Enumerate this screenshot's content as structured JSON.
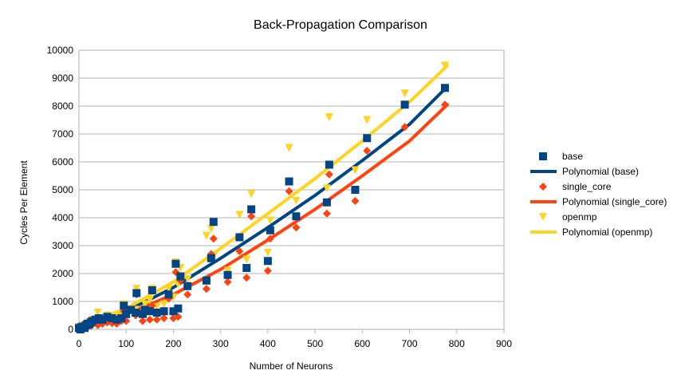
{
  "chart_data": {
    "type": "scatter",
    "title": "Back-Propagation Comparison",
    "xlabel": "Number of Neurons",
    "ylabel": "Cycles Per Element",
    "xlim": [
      0,
      900
    ],
    "ylim": [
      0,
      10000
    ],
    "xticks": [
      "0",
      "100",
      "200",
      "300",
      "400",
      "500",
      "600",
      "700",
      "800",
      "900"
    ],
    "yticks": [
      "0",
      "1000",
      "2000",
      "3000",
      "4000",
      "5000",
      "6000",
      "7000",
      "8000",
      "9000",
      "10000"
    ],
    "grid": "horizontal",
    "legend_position": "right",
    "legend": [
      "base",
      "Polynomial (base)",
      "single_core",
      "Polynomial (single_core)",
      "openmp",
      "Polynomial (openmp)"
    ],
    "series": [
      {
        "name": "base",
        "marker": "square",
        "color": "#004586",
        "points": [
          [
            0,
            50
          ],
          [
            3,
            0
          ],
          [
            5,
            80
          ],
          [
            8,
            100
          ],
          [
            12,
            50
          ],
          [
            15,
            150
          ],
          [
            18,
            200
          ],
          [
            22,
            180
          ],
          [
            25,
            250
          ],
          [
            28,
            300
          ],
          [
            35,
            350
          ],
          [
            42,
            400
          ],
          [
            50,
            350
          ],
          [
            60,
            450
          ],
          [
            70,
            400
          ],
          [
            80,
            350
          ],
          [
            90,
            400
          ],
          [
            95,
            850
          ],
          [
            100,
            550
          ],
          [
            110,
            700
          ],
          [
            120,
            600
          ],
          [
            122,
            1300
          ],
          [
            135,
            550
          ],
          [
            140,
            700
          ],
          [
            150,
            650
          ],
          [
            155,
            1400
          ],
          [
            165,
            600
          ],
          [
            180,
            650
          ],
          [
            190,
            1250
          ],
          [
            200,
            650
          ],
          [
            205,
            2350
          ],
          [
            210,
            750
          ],
          [
            215,
            1900
          ],
          [
            230,
            1550
          ],
          [
            270,
            1750
          ],
          [
            280,
            2550
          ],
          [
            285,
            3850
          ],
          [
            315,
            1950
          ],
          [
            340,
            3300
          ],
          [
            355,
            2200
          ],
          [
            365,
            4300
          ],
          [
            400,
            2450
          ],
          [
            405,
            3550
          ],
          [
            445,
            5300
          ],
          [
            460,
            4050
          ],
          [
            525,
            4550
          ],
          [
            530,
            5900
          ],
          [
            585,
            5000
          ],
          [
            610,
            6850
          ],
          [
            690,
            8050
          ],
          [
            775,
            8650
          ]
        ]
      },
      {
        "name": "single_core",
        "marker": "diamond",
        "color": "#ff420e",
        "points": [
          [
            0,
            30
          ],
          [
            5,
            50
          ],
          [
            10,
            80
          ],
          [
            15,
            100
          ],
          [
            20,
            150
          ],
          [
            25,
            120
          ],
          [
            30,
            200
          ],
          [
            40,
            150
          ],
          [
            50,
            200
          ],
          [
            60,
            250
          ],
          [
            70,
            220
          ],
          [
            80,
            200
          ],
          [
            90,
            300
          ],
          [
            95,
            650
          ],
          [
            100,
            300
          ],
          [
            120,
            500
          ],
          [
            122,
            1250
          ],
          [
            135,
            300
          ],
          [
            150,
            350
          ],
          [
            155,
            850
          ],
          [
            165,
            350
          ],
          [
            180,
            400
          ],
          [
            190,
            1100
          ],
          [
            200,
            400
          ],
          [
            205,
            2050
          ],
          [
            210,
            450
          ],
          [
            215,
            1750
          ],
          [
            230,
            1250
          ],
          [
            270,
            1450
          ],
          [
            280,
            2700
          ],
          [
            285,
            3250
          ],
          [
            315,
            1700
          ],
          [
            340,
            2800
          ],
          [
            355,
            1850
          ],
          [
            365,
            4050
          ],
          [
            400,
            2100
          ],
          [
            405,
            3250
          ],
          [
            445,
            4950
          ],
          [
            460,
            3650
          ],
          [
            525,
            4150
          ],
          [
            530,
            5550
          ],
          [
            585,
            4600
          ],
          [
            610,
            6400
          ],
          [
            690,
            7250
          ],
          [
            775,
            8050
          ]
        ]
      },
      {
        "name": "openmp",
        "marker": "triangle-down",
        "color": "#ffd320",
        "points": [
          [
            0,
            80
          ],
          [
            5,
            50
          ],
          [
            10,
            150
          ],
          [
            20,
            250
          ],
          [
            30,
            350
          ],
          [
            40,
            600
          ],
          [
            50,
            400
          ],
          [
            60,
            500
          ],
          [
            80,
            450
          ],
          [
            90,
            500
          ],
          [
            95,
            900
          ],
          [
            100,
            700
          ],
          [
            120,
            700
          ],
          [
            122,
            1450
          ],
          [
            140,
            900
          ],
          [
            150,
            1050
          ],
          [
            155,
            1450
          ],
          [
            165,
            800
          ],
          [
            180,
            900
          ],
          [
            190,
            1450
          ],
          [
            200,
            1150
          ],
          [
            205,
            2400
          ],
          [
            210,
            1600
          ],
          [
            215,
            2200
          ],
          [
            230,
            1800
          ],
          [
            270,
            3350
          ],
          [
            280,
            3600
          ],
          [
            285,
            2600
          ],
          [
            315,
            2100
          ],
          [
            340,
            4100
          ],
          [
            355,
            2500
          ],
          [
            365,
            4850
          ],
          [
            400,
            2750
          ],
          [
            405,
            3900
          ],
          [
            445,
            6500
          ],
          [
            460,
            4600
          ],
          [
            525,
            5050
          ],
          [
            530,
            7600
          ],
          [
            585,
            5700
          ],
          [
            610,
            7500
          ],
          [
            690,
            8450
          ],
          [
            775,
            9450
          ]
        ]
      }
    ],
    "trendlines": [
      {
        "name": "Polynomial (base)",
        "color": "#004586",
        "points": [
          [
            0,
            100
          ],
          [
            100,
            650
          ],
          [
            200,
            1500
          ],
          [
            300,
            2550
          ],
          [
            400,
            3650
          ],
          [
            500,
            4800
          ],
          [
            600,
            6050
          ],
          [
            700,
            7350
          ],
          [
            780,
            8700
          ]
        ]
      },
      {
        "name": "Polynomial (single_core)",
        "color": "#ff420e",
        "points": [
          [
            0,
            100
          ],
          [
            100,
            550
          ],
          [
            200,
            1250
          ],
          [
            300,
            2150
          ],
          [
            400,
            3200
          ],
          [
            500,
            4300
          ],
          [
            600,
            5500
          ],
          [
            700,
            6750
          ],
          [
            780,
            8050
          ]
        ]
      },
      {
        "name": "Polynomial (openmp)",
        "color": "#ffd320",
        "points": [
          [
            0,
            100
          ],
          [
            100,
            750
          ],
          [
            200,
            1700
          ],
          [
            300,
            2900
          ],
          [
            400,
            4150
          ],
          [
            500,
            5400
          ],
          [
            600,
            6750
          ],
          [
            700,
            8150
          ],
          [
            780,
            9450
          ]
        ]
      }
    ]
  }
}
